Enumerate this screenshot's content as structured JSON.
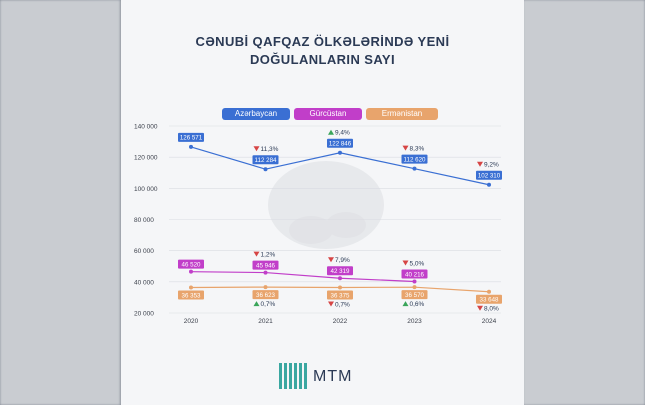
{
  "title_line1": "CƏNUBİ QAFQAZ ÖLKƏLƏRİNDƏ YENİ",
  "title_line2": "DOĞULANLARIN SAYI",
  "brand": "MTM",
  "chart_data": {
    "type": "line",
    "x": [
      "2020",
      "2021",
      "2022",
      "2023",
      "2024"
    ],
    "ylim": [
      20000,
      140000
    ],
    "yticks": [
      "140 000",
      "120 000",
      "100 000",
      "80 000",
      "60 000",
      "40 000",
      "20 000"
    ],
    "ytick_values": [
      140000,
      120000,
      100000,
      80000,
      60000,
      40000,
      20000
    ],
    "series": [
      {
        "name": "Azərbaycan",
        "color": "#3a6fd3",
        "values": [
          126571,
          112284,
          122846,
          112620,
          102310
        ],
        "labels": [
          "126 571",
          "112 284",
          "122 846",
          "112 620",
          "102 310"
        ],
        "changes": [
          null,
          "11,3%",
          "9,4%",
          "8,3%",
          "9,2%"
        ],
        "directions": [
          null,
          "down",
          "up",
          "down",
          "down"
        ]
      },
      {
        "name": "Gürcüstan",
        "color": "#c13ec9",
        "values": [
          46520,
          45946,
          42319,
          40216,
          null
        ],
        "labels": [
          "46 520",
          "45 946",
          "42 319",
          "40 216",
          ""
        ],
        "changes": [
          null,
          "1,2%",
          "7,9%",
          "5,0%",
          null
        ],
        "directions": [
          null,
          "down",
          "down",
          "down",
          null
        ]
      },
      {
        "name": "Ermənistan",
        "color": "#e8a46c",
        "values": [
          36353,
          36623,
          36375,
          36570,
          33648
        ],
        "labels": [
          "36 353",
          "36 623",
          "36 375",
          "36 570",
          "33 648"
        ],
        "changes": [
          null,
          "0,7%",
          "0,7%",
          "0,6%",
          "8,0%"
        ],
        "directions": [
          null,
          "up",
          "down",
          "up",
          "down"
        ]
      }
    ]
  }
}
